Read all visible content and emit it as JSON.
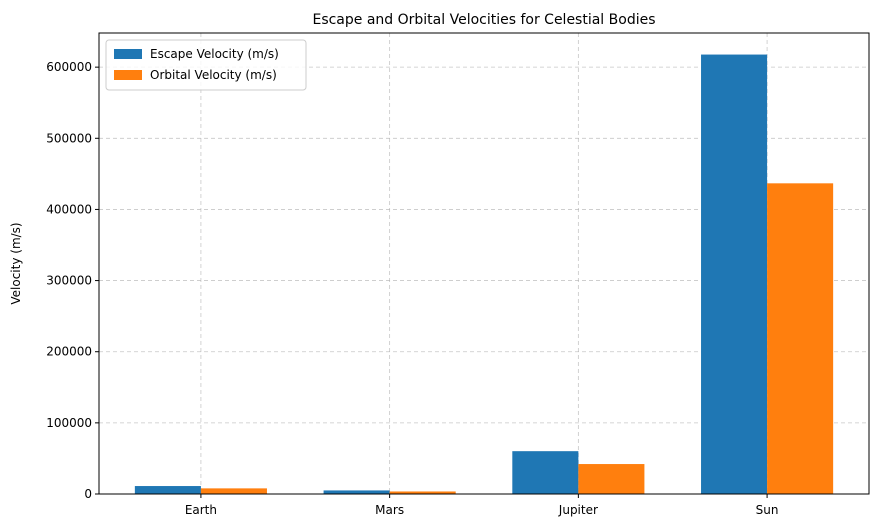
{
  "chart_data": {
    "type": "bar",
    "title": "Escape and Orbital Velocities for Celestial Bodies",
    "xlabel": "",
    "ylabel": "Velocity (m/s)",
    "categories": [
      "Earth",
      "Mars",
      "Jupiter",
      "Sun"
    ],
    "series": [
      {
        "name": "Escape Velocity (m/s)",
        "color": "#1f77b4",
        "values": [
          11186,
          5027,
          60200,
          617700
        ]
      },
      {
        "name": "Orbital Velocity (m/s)",
        "color": "#ff7f0e",
        "values": [
          7910,
          3550,
          42100,
          436700
        ]
      }
    ],
    "ylim": [
      0,
      648000
    ],
    "yticks": [
      0,
      100000,
      200000,
      300000,
      400000,
      500000,
      600000
    ],
    "ytick_labels": [
      "0",
      "100000",
      "200000",
      "300000",
      "400000",
      "500000",
      "600000"
    ],
    "grid": true,
    "legend_position": "top-left"
  }
}
